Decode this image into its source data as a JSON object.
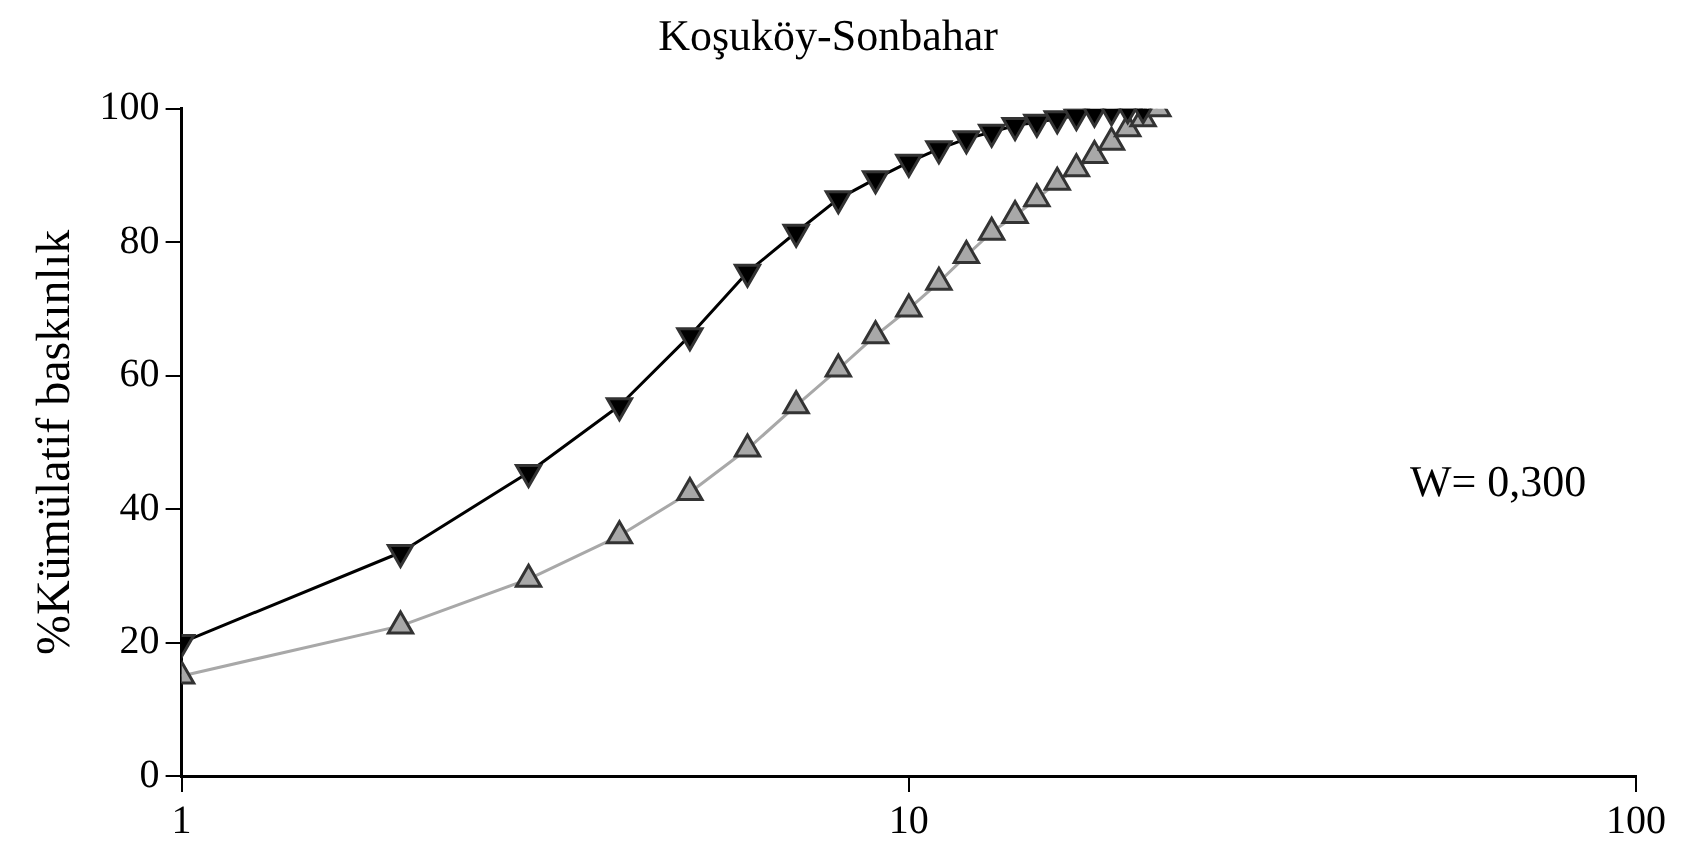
{
  "chart_data": {
    "type": "line",
    "title": "Koşuköy-Sonbahar",
    "ylabel": "%Kümülatif baskınlık",
    "x": [
      1,
      2,
      3,
      4,
      5,
      6,
      7,
      8,
      9,
      10,
      11,
      12,
      13,
      14,
      15,
      16,
      17,
      18,
      19,
      20,
      21,
      22
    ],
    "series": [
      {
        "color": "#000000",
        "marker": "triangle-down",
        "x": [
          1,
          2,
          3,
          4,
          5,
          6,
          7,
          8,
          9,
          10,
          11,
          12,
          13,
          14,
          15,
          16,
          17,
          18,
          19,
          20,
          21
        ],
        "values": [
          20,
          33.5,
          45.5,
          55.5,
          66,
          75.5,
          81.5,
          86.5,
          89.5,
          92,
          94,
          95.5,
          96.5,
          97.5,
          98,
          98.5,
          99,
          99.5,
          99.7,
          100,
          100
        ]
      },
      {
        "color": "#a8a8a8",
        "marker": "triangle",
        "values": [
          15,
          22.5,
          29.5,
          36,
          42.5,
          49,
          55.5,
          61,
          66,
          70,
          74,
          78,
          81.5,
          84,
          86.5,
          89,
          91,
          93,
          95,
          97,
          98.5,
          100
        ]
      }
    ],
    "log": "x",
    "xlim": [
      1,
      100
    ],
    "xticks": [
      1,
      10,
      100
    ],
    "ylim": [
      0,
      100
    ],
    "yticks": [
      0,
      20,
      40,
      60,
      80,
      100
    ],
    "grid": false,
    "legend": false,
    "annotations": [
      "W= 0,300"
    ]
  }
}
